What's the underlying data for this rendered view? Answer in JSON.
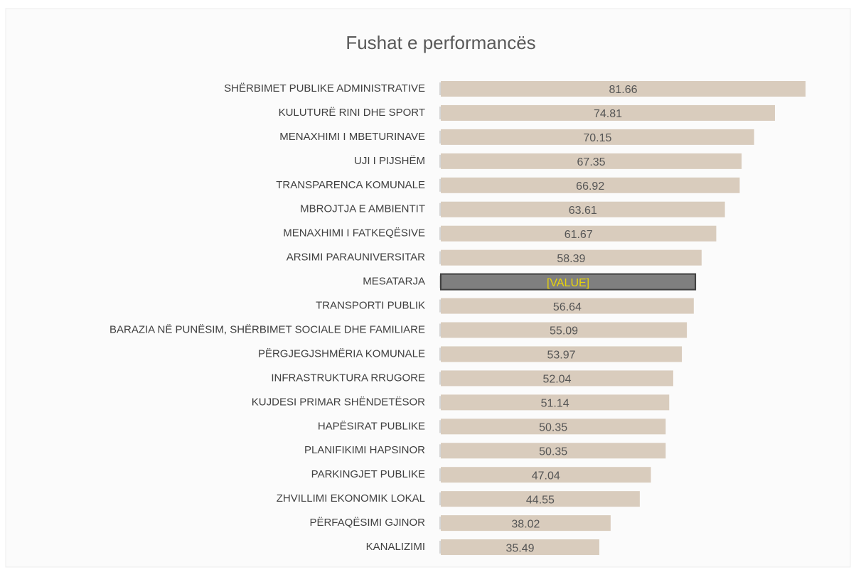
{
  "chart_data": {
    "type": "hbar",
    "title": "Fushat e performancës",
    "categories": [
      "SHËRBIMET PUBLIKE ADMINISTRATIVE",
      "KULUTURË RINI DHE SPORT",
      "MENAXHIMI I MBETURINAVE",
      "UJI I PIJSHËM",
      "TRANSPARENCA KOMUNALE",
      "MBROJTJA E AMBIENTIT",
      "MENAXHIMI I FATKEQËSIVE",
      "ARSIMI PARAUNIVERSITAR",
      "MESATARJA",
      "TRANSPORTI PUBLIK",
      "BARAZIA NË PUNËSIM, SHËRBIMET SOCIALE DHE FAMILIARE",
      "PËRGJEGJSHMËRIA KOMUNALE",
      "INFRASTRUKTURA RRUGORE",
      "KUJDESI PRIMAR SHËNDETËSOR",
      "HAPËSIRAT PUBLIKE",
      "PLANIFIKIMI HAPSINOR",
      "PARKINGJET PUBLIKE",
      "ZHVILLIMI EKONOMIK LOKAL",
      "PËRFAQËSIMI GJINOR",
      "KANALIZIMI"
    ],
    "values": [
      81.66,
      74.81,
      70.15,
      67.35,
      66.92,
      63.61,
      61.67,
      58.39,
      57,
      56.64,
      55.09,
      53.97,
      52.04,
      51.14,
      50.35,
      50.35,
      47.04,
      44.55,
      38.02,
      35.49
    ],
    "value_labels": [
      "81.66",
      "74.81",
      "70.15",
      "67.35",
      "66.92",
      "63.61",
      "61.67",
      "58.39",
      "[VALUE]",
      "56.64",
      "55.09",
      "53.97",
      "52.04",
      "51.14",
      "50.35",
      "50.35",
      "47.04",
      "44.55",
      "38.02",
      "35.49"
    ],
    "color": "#d9ccbd",
    "highlight_color": "#7f7f7f",
    "highlight_index": 8,
    "xlim": [
      0,
      85
    ]
  }
}
